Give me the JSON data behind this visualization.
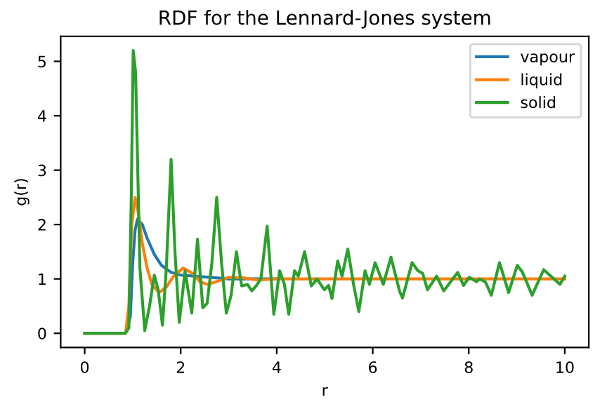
{
  "chart_data": {
    "type": "line",
    "title": "RDF for the Lennard-Jones system",
    "xlabel": "r",
    "ylabel": "g(r)",
    "xlim": [
      -0.5,
      10.5
    ],
    "ylim": [
      -0.26,
      5.46
    ],
    "xticks": [
      0,
      2,
      4,
      6,
      8,
      10
    ],
    "yticks": [
      0,
      1,
      2,
      3,
      4,
      5
    ],
    "legend": "top right",
    "grid": false,
    "series": [
      {
        "name": "vapour",
        "color": "#1f77b4",
        "x": [
          0,
          0.85,
          0.95,
          1.0,
          1.05,
          1.1,
          1.2,
          1.3,
          1.45,
          1.6,
          1.8,
          2.0,
          2.3,
          2.6,
          3.0,
          3.5,
          4
        ],
        "values": [
          0,
          0,
          0.3,
          1.3,
          1.9,
          2.1,
          2.0,
          1.75,
          1.45,
          1.25,
          1.12,
          1.07,
          1.05,
          1.03,
          1.0,
          1.0,
          1.0
        ]
      },
      {
        "name": "liquid",
        "color": "#ff7f0e",
        "x": [
          0,
          0.85,
          0.92,
          0.98,
          1.05,
          1.12,
          1.2,
          1.3,
          1.4,
          1.55,
          1.7,
          1.85,
          2.05,
          2.25,
          2.4,
          2.55,
          2.75,
          3.0,
          3.3,
          3.6,
          4,
          6,
          8,
          10
        ],
        "values": [
          0,
          0,
          0.5,
          2.0,
          2.5,
          2.2,
          1.65,
          1.2,
          0.9,
          0.75,
          0.85,
          1.05,
          1.2,
          1.1,
          0.95,
          0.9,
          0.95,
          1.03,
          1.02,
          0.98,
          1.0,
          1.0,
          1.0,
          1.0
        ]
      },
      {
        "name": "solid",
        "color": "#2ca02c",
        "x": [
          0,
          0.85,
          0.92,
          0.97,
          1.01,
          1.06,
          1.15,
          1.25,
          1.35,
          1.45,
          1.53,
          1.62,
          1.7,
          1.8,
          1.88,
          1.97,
          2.09,
          2.23,
          2.35,
          2.46,
          2.55,
          2.65,
          2.75,
          2.85,
          2.95,
          3.05,
          3.16,
          3.27,
          3.39,
          3.48,
          3.58,
          3.67,
          3.8,
          3.94,
          4.06,
          4.16,
          4.25,
          4.37,
          4.45,
          4.58,
          4.72,
          4.84,
          4.99,
          5.08,
          5.15,
          5.27,
          5.36,
          5.48,
          5.6,
          5.71,
          5.84,
          5.93,
          6.05,
          6.22,
          6.38,
          6.56,
          6.62,
          6.82,
          6.94,
          7.04,
          7.14,
          7.33,
          7.48,
          7.77,
          7.89,
          8.01,
          8.16,
          8.23,
          8.35,
          8.47,
          8.64,
          8.83,
          9.01,
          9.12,
          9.32,
          9.56,
          9.9,
          10.0
        ],
        "values": [
          0,
          0,
          0.1,
          2.5,
          5.2,
          4.8,
          1.2,
          0.05,
          0.5,
          1.07,
          0.8,
          0.15,
          1.2,
          3.2,
          1.5,
          0.2,
          1.15,
          0.37,
          1.73,
          0.47,
          0.55,
          1.3,
          2.5,
          1.3,
          0.37,
          0.7,
          1.5,
          0.87,
          0.9,
          0.78,
          0.88,
          1.0,
          1.97,
          0.35,
          1.15,
          0.9,
          0.35,
          1.15,
          1.05,
          1.5,
          0.87,
          1.0,
          0.8,
          0.88,
          0.64,
          1.33,
          1.05,
          1.55,
          0.9,
          0.4,
          1.15,
          0.9,
          1.3,
          0.9,
          1.4,
          0.77,
          0.65,
          1.3,
          1.15,
          1.1,
          0.8,
          1.05,
          0.78,
          1.12,
          0.88,
          1.03,
          0.95,
          1.0,
          0.94,
          0.7,
          1.3,
          0.75,
          1.25,
          1.12,
          0.7,
          1.17,
          0.9,
          1.05
        ]
      }
    ]
  }
}
